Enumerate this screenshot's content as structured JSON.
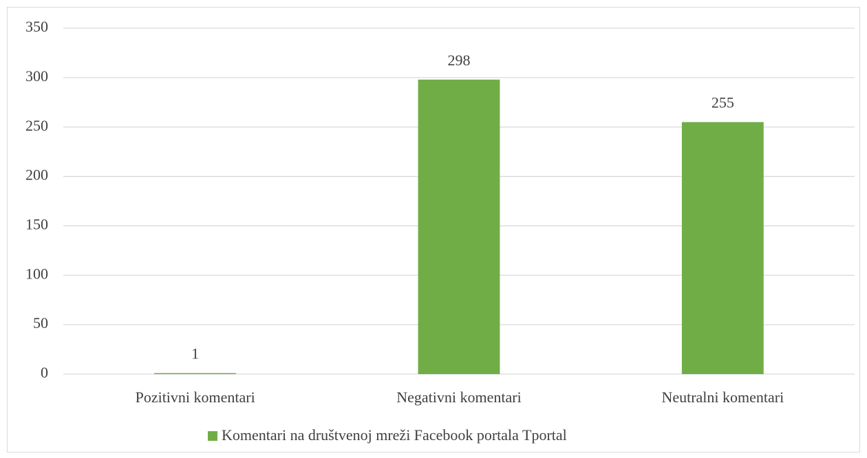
{
  "chart_data": {
    "type": "bar",
    "categories": [
      "Pozitivni komentari",
      "Negativni komentari",
      "Neutralni komentari"
    ],
    "series": [
      {
        "name": "Komentari na društvenoj mreži Facebook portala Tportal",
        "color": "#70ad47",
        "values": [
          1,
          298,
          255
        ]
      }
    ],
    "ylim": [
      0,
      350
    ],
    "yticks": [
      0,
      50,
      100,
      150,
      200,
      250,
      300,
      350
    ],
    "grid": true,
    "legend": "bottom"
  }
}
